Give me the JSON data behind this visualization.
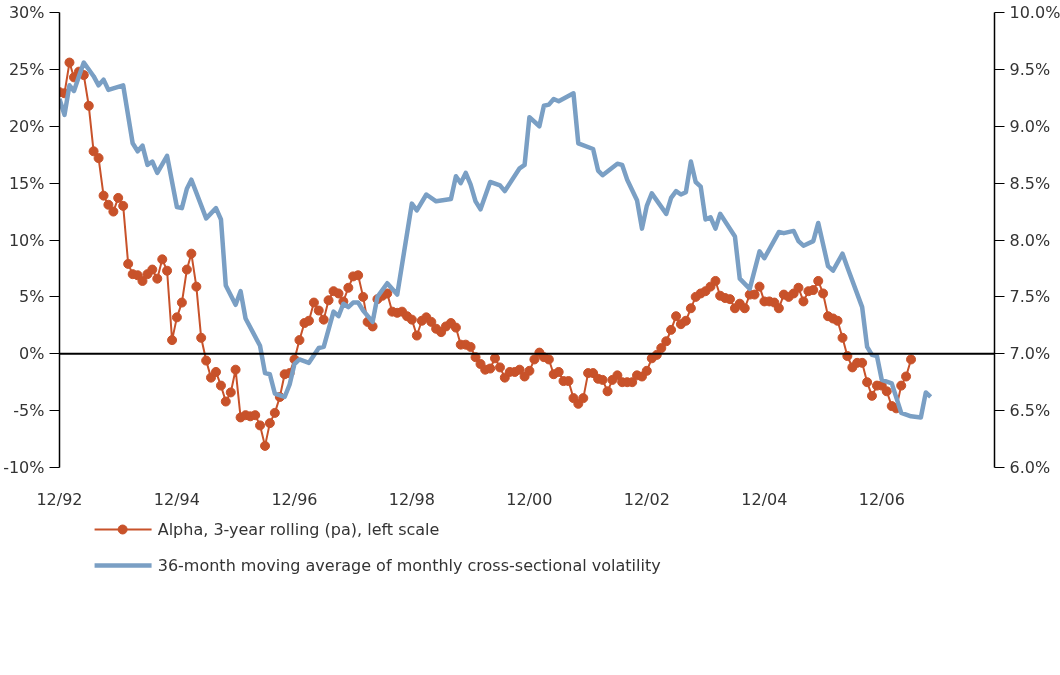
{
  "chart_data": {
    "type": "line",
    "x": [
      "1992-12",
      "1993-01",
      "1993-02",
      "1993-03",
      "1993-04",
      "1993-05",
      "1993-06",
      "1993-07",
      "1993-08",
      "1993-09",
      "1993-10",
      "1993-11",
      "1993-12",
      "1994-01",
      "1994-02",
      "1994-03",
      "1994-04",
      "1994-05",
      "1994-06",
      "1994-07",
      "1994-08",
      "1994-09",
      "1994-10",
      "1994-11",
      "1994-12",
      "1995-01",
      "1995-02",
      "1995-03",
      "1995-04",
      "1995-05",
      "1995-06",
      "1995-07",
      "1995-08",
      "1995-09",
      "1995-10",
      "1995-11",
      "1995-12",
      "1996-01",
      "1996-02",
      "1996-03",
      "1996-04",
      "1996-05",
      "1996-06",
      "1996-07",
      "1996-08",
      "1996-09",
      "1996-10",
      "1996-11",
      "1996-12",
      "1997-01",
      "1997-02",
      "1997-03",
      "1997-04",
      "1997-05",
      "1997-06",
      "1997-07",
      "1997-08",
      "1997-09",
      "1997-10",
      "1997-11",
      "1997-12",
      "1998-01",
      "1998-02",
      "1998-03",
      "1998-04",
      "1998-05",
      "1998-06",
      "1998-07",
      "1998-08",
      "1998-09",
      "1998-10",
      "1998-11",
      "1998-12",
      "1999-01",
      "1999-02",
      "1999-03",
      "1999-04",
      "1999-05",
      "1999-06",
      "1999-07",
      "1999-08",
      "1999-09",
      "1999-10",
      "1999-11",
      "1999-12",
      "2000-01",
      "2000-02",
      "2000-03",
      "2000-04",
      "2000-05",
      "2000-06",
      "2000-07",
      "2000-08",
      "2000-09",
      "2000-10",
      "2000-11",
      "2000-12",
      "2001-01",
      "2001-02",
      "2001-03",
      "2001-04",
      "2001-05",
      "2001-06",
      "2001-07",
      "2001-08",
      "2001-09",
      "2001-10",
      "2001-11",
      "2001-12",
      "2002-01",
      "2002-02",
      "2002-03",
      "2002-04",
      "2002-05",
      "2002-06",
      "2002-07",
      "2002-08",
      "2002-09",
      "2002-10",
      "2002-11",
      "2002-12",
      "2003-01",
      "2003-02",
      "2003-03",
      "2003-04",
      "2003-05",
      "2003-06",
      "2003-07",
      "2003-08",
      "2003-09",
      "2003-10",
      "2003-11",
      "2003-12",
      "2004-01",
      "2004-02",
      "2004-03",
      "2004-04",
      "2004-05",
      "2004-06",
      "2004-07",
      "2004-08",
      "2004-09",
      "2004-10",
      "2004-11",
      "2004-12",
      "2005-01",
      "2005-02",
      "2005-03",
      "2005-04",
      "2005-05",
      "2005-06",
      "2005-07",
      "2005-08",
      "2005-09",
      "2005-10",
      "2005-11",
      "2005-12",
      "2006-01",
      "2006-02",
      "2006-03",
      "2006-04",
      "2006-05",
      "2006-06",
      "2006-07",
      "2006-08",
      "2006-09",
      "2006-10",
      "2006-11",
      "2006-12",
      "2007-01",
      "2007-02",
      "2007-03",
      "2007-04",
      "2007-05",
      "2007-06"
    ],
    "xlim": [
      "1992-12",
      "2008-11"
    ],
    "xticks": [
      {
        "value": "1992-12",
        "label": "12/92"
      },
      {
        "value": "1994-12",
        "label": "12/94"
      },
      {
        "value": "1996-12",
        "label": "12/96"
      },
      {
        "value": "1998-12",
        "label": "12/98"
      },
      {
        "value": "2000-12",
        "label": "12/00"
      },
      {
        "value": "2002-12",
        "label": "12/02"
      },
      {
        "value": "2004-12",
        "label": "12/04"
      },
      {
        "value": "2006-12",
        "label": "12/06"
      }
    ],
    "ylim": [
      -10,
      30
    ],
    "yticks": [
      {
        "value": -10,
        "label": "-10%"
      },
      {
        "value": -5,
        "label": "-5%"
      },
      {
        "value": 0,
        "label": "0%"
      },
      {
        "value": 5,
        "label": "5%"
      },
      {
        "value": 10,
        "label": "10%"
      },
      {
        "value": 15,
        "label": "15%"
      },
      {
        "value": 20,
        "label": "20%"
      },
      {
        "value": 25,
        "label": "25%"
      },
      {
        "value": 30,
        "label": "30%"
      }
    ],
    "y2lim": [
      6,
      10
    ],
    "y2ticks": [
      {
        "value": 6,
        "label": "6.0%"
      },
      {
        "value": 6.5,
        "label": "6.5%"
      },
      {
        "value": 7,
        "label": "7.0%"
      },
      {
        "value": 7.5,
        "label": "7.5%"
      },
      {
        "value": 8,
        "label": "8.0%"
      },
      {
        "value": 8.5,
        "label": "8.5%"
      },
      {
        "value": 9,
        "label": "9.0%"
      },
      {
        "value": 9.5,
        "label": "9.5%"
      },
      {
        "value": 10,
        "label": "10.0%"
      }
    ],
    "ref_lines": [
      {
        "axis": "y",
        "value": 0,
        "color": "#000000"
      }
    ],
    "grid": false,
    "legend": "bottom",
    "series": [
      {
        "name": "Alpha, 3-year rolling (pa), left scale",
        "color": "#c8522a",
        "marker": "circle",
        "values": [
          23.0,
          22.9,
          25.6,
          24.3,
          24.8,
          24.5,
          21.8,
          17.8,
          17.2,
          13.9,
          13.1,
          12.5,
          13.7,
          13.0,
          7.9,
          7.0,
          6.9,
          6.4,
          7.0,
          7.4,
          6.6,
          8.3,
          7.3,
          1.2,
          3.2,
          4.5,
          7.4,
          8.8,
          5.9,
          1.4,
          -0.6,
          -2.1,
          -1.6,
          -2.8,
          -4.2,
          -3.4,
          -1.4,
          -5.6,
          -5.4,
          -5.5,
          -5.4,
          -6.3,
          -8.1,
          -6.1,
          -5.2,
          -3.8,
          -1.8,
          -1.7,
          -0.5,
          1.2,
          2.7,
          2.9,
          4.5,
          3.8,
          3.0,
          4.7,
          5.5,
          5.3,
          4.6,
          5.8,
          6.8,
          6.9,
          5.0,
          2.8,
          2.4,
          4.8,
          5.1,
          5.3,
          3.7,
          3.6,
          3.7,
          3.3,
          3.0,
          1.6,
          2.9,
          3.2,
          2.8,
          2.2,
          1.9,
          2.4,
          2.7,
          2.3,
          0.8,
          0.8,
          0.6,
          -0.3,
          -0.9,
          -1.4,
          -1.3,
          -0.4,
          -1.2,
          -2.1,
          -1.6,
          -1.6,
          -1.4,
          -2.0,
          -1.5,
          -0.5,
          0.1,
          -0.3,
          -0.5,
          -1.8,
          -1.6,
          -2.4,
          -2.4,
          -3.9,
          -4.4,
          -3.9,
          -1.7,
          -1.7,
          -2.2,
          -2.3,
          -3.3,
          -2.3,
          -1.9,
          -2.5,
          -2.5,
          -2.5,
          -1.9,
          -2.0,
          -1.5,
          -0.4,
          -0.1,
          0.5,
          1.1,
          2.1,
          3.3,
          2.6,
          2.9,
          4.0,
          5.0,
          5.3,
          5.5,
          5.9,
          6.4,
          5.1,
          4.9,
          4.8,
          4.0,
          4.4,
          4.0,
          5.2,
          5.2,
          5.9,
          4.6,
          4.6,
          4.5,
          4.0,
          5.2,
          5.0,
          5.3,
          5.8,
          4.6,
          5.5,
          5.6,
          6.4,
          5.3,
          3.3,
          3.1,
          2.9,
          1.4,
          -0.2,
          -1.2,
          -0.8,
          -0.8,
          -2.5,
          -3.7,
          -2.8,
          -2.8,
          -3.3,
          -4.6,
          -4.8,
          -2.8,
          -2.0,
          -0.5
        ]
      },
      {
        "name": "36-month moving average of monthly cross-sectional volatility",
        "color": "#7a9fc4",
        "axis": "y2",
        "marker": "none",
        "x": [
          "1992-12",
          "1993-01",
          "1993-02",
          "1993-03",
          "1993-04",
          "1993-05",
          "1993-07",
          "1993-08",
          "1993-09",
          "1993-10",
          "1994-01",
          "1994-03",
          "1994-04",
          "1994-05",
          "1994-06",
          "1994-07",
          "1994-08",
          "1994-10",
          "1994-12",
          "1995-01",
          "1995-02",
          "1995-03",
          "1995-06",
          "1995-08",
          "1995-09",
          "1995-10",
          "1995-12",
          "1996-01",
          "1996-02",
          "1996-05",
          "1996-06",
          "1996-07",
          "1996-08",
          "1996-10",
          "1996-11",
          "1996-12",
          "1997-01",
          "1997-03",
          "1997-05",
          "1997-06",
          "1997-08",
          "1997-09",
          "1997-10",
          "1997-11",
          "1997-12",
          "1998-01",
          "1998-02",
          "1998-04",
          "1998-05",
          "1998-07",
          "1998-09",
          "1998-12",
          "1999-01",
          "1999-03",
          "1999-05",
          "1999-08",
          "1999-09",
          "1999-10",
          "1999-11",
          "1999-12",
          "2000-01",
          "2000-02",
          "2000-04",
          "2000-06",
          "2000-07",
          "2000-10",
          "2000-11",
          "2000-12",
          "2001-02",
          "2001-03",
          "2001-04",
          "2001-05",
          "2001-06",
          "2001-09",
          "2001-10",
          "2002-01",
          "2002-02",
          "2002-03",
          "2002-06",
          "2002-07",
          "2002-08",
          "2002-10",
          "2002-11",
          "2002-12",
          "2003-01",
          "2003-04",
          "2003-05",
          "2003-06",
          "2003-07",
          "2003-08",
          "2003-09",
          "2003-10",
          "2003-11",
          "2003-12",
          "2004-01",
          "2004-02",
          "2004-03",
          "2004-06",
          "2004-07",
          "2004-09",
          "2004-11",
          "2004-12",
          "2005-03",
          "2005-04",
          "2005-06",
          "2005-07",
          "2005-08",
          "2005-10",
          "2005-11",
          "2006-01",
          "2006-02",
          "2006-04",
          "2006-05",
          "2006-08",
          "2006-09",
          "2006-10",
          "2006-11",
          "2006-12",
          "2007-02",
          "2007-04",
          "2007-06",
          "2007-08",
          "2007-09",
          "2007-10"
        ],
        "values": [
          9.24,
          9.1,
          9.36,
          9.31,
          9.44,
          9.56,
          9.44,
          9.36,
          9.41,
          9.32,
          9.36,
          8.85,
          8.78,
          8.83,
          8.66,
          8.69,
          8.59,
          8.74,
          8.29,
          8.28,
          8.45,
          8.53,
          8.19,
          8.28,
          8.18,
          7.6,
          7.43,
          7.55,
          7.31,
          7.07,
          6.83,
          6.82,
          6.65,
          6.62,
          6.73,
          6.91,
          6.95,
          6.92,
          7.05,
          7.06,
          7.37,
          7.33,
          7.44,
          7.41,
          7.45,
          7.45,
          7.38,
          7.28,
          7.5,
          7.62,
          7.52,
          8.32,
          8.26,
          8.4,
          8.34,
          8.36,
          8.56,
          8.5,
          8.59,
          8.49,
          8.34,
          8.27,
          8.51,
          8.48,
          8.43,
          8.63,
          8.66,
          9.08,
          9.0,
          9.18,
          9.19,
          9.24,
          9.22,
          9.29,
          8.85,
          8.8,
          8.61,
          8.57,
          8.67,
          8.66,
          8.53,
          8.35,
          8.1,
          8.3,
          8.41,
          8.23,
          8.37,
          8.43,
          8.4,
          8.42,
          8.69,
          8.51,
          8.47,
          8.18,
          8.2,
          8.1,
          8.23,
          8.03,
          7.66,
          7.57,
          7.9,
          7.84,
          8.07,
          8.06,
          8.08,
          7.99,
          7.95,
          7.99,
          8.15,
          7.77,
          7.73,
          7.88,
          7.76,
          7.41,
          7.06,
          6.99,
          6.98,
          6.77,
          6.74,
          6.48,
          6.45,
          6.44,
          6.66,
          6.62
        ]
      }
    ]
  }
}
